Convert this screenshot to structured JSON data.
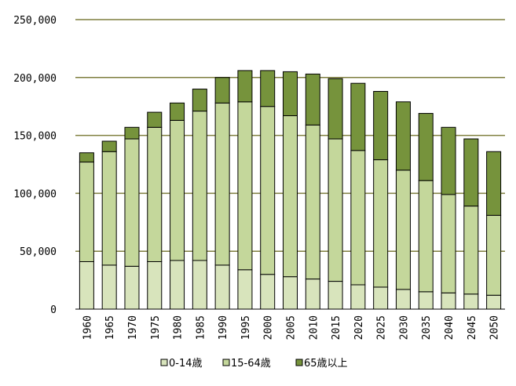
{
  "chart_data": {
    "type": "bar",
    "stacked": true,
    "categories": [
      "1960",
      "1965",
      "1970",
      "1975",
      "1980",
      "1985",
      "1990",
      "1995",
      "2000",
      "2005",
      "2010",
      "2015",
      "2020",
      "2025",
      "2030",
      "2035",
      "2040",
      "2045",
      "2050"
    ],
    "series": [
      {
        "name": "0-14歳",
        "color": "#d8e4bc",
        "values": [
          41000,
          38000,
          37000,
          41000,
          42000,
          42000,
          38000,
          34000,
          30000,
          28000,
          26000,
          24000,
          21000,
          19000,
          17000,
          15000,
          14000,
          13000,
          12000
        ]
      },
      {
        "name": "15-64歳",
        "color": "#c4d79b",
        "values": [
          86000,
          98000,
          110000,
          116000,
          121000,
          129000,
          140000,
          145000,
          145000,
          139000,
          133000,
          123000,
          116000,
          110000,
          103000,
          96000,
          85000,
          76000,
          69000
        ]
      },
      {
        "name": "65歳以上",
        "color": "#76933c",
        "values": [
          8000,
          9000,
          10000,
          13000,
          15000,
          19000,
          22000,
          27000,
          31000,
          38000,
          44000,
          52000,
          58000,
          59000,
          59000,
          58000,
          58000,
          58000,
          55000
        ]
      }
    ],
    "ylim": [
      0,
      250000
    ],
    "yticks": [
      0,
      50000,
      100000,
      150000,
      200000,
      250000
    ],
    "ytick_labels": [
      "0",
      "50,000",
      "100,000",
      "150,000",
      "200,000",
      "250,000"
    ],
    "grid": true,
    "gridline_color": "#7f7f3f",
    "legend_position": "bottom"
  }
}
